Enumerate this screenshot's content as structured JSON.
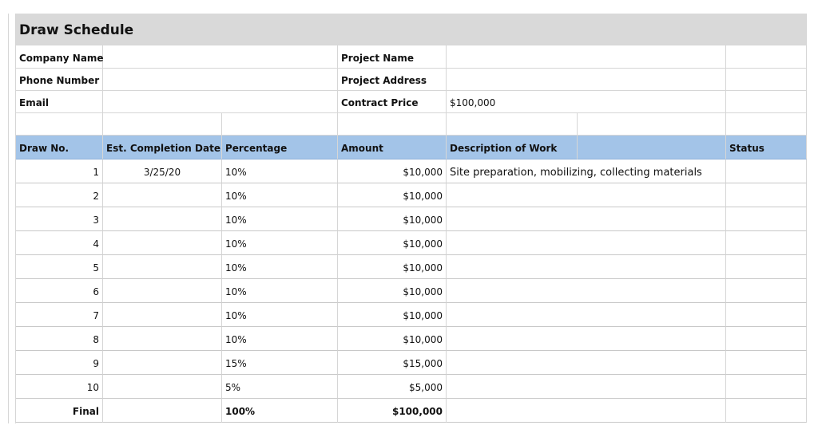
{
  "header": {
    "title": "Draw Schedule"
  },
  "info_left": [
    "Company Name",
    "Phone Number",
    "Email"
  ],
  "info_right": [
    {
      "label": "Project Name"
    },
    {
      "label": "Project Address"
    },
    {
      "label": "Contract Price",
      "value": "$100,000"
    }
  ],
  "table": {
    "columns": [
      "Draw No.",
      "Est. Completion Date",
      "Percentage",
      "Amount",
      "Description of Work",
      "Status"
    ],
    "rows": [
      {
        "draw_no": 1,
        "date": "3/25/20",
        "percentage": "10%",
        "amount": "$10,000",
        "description": "Site preparation, mobilizing, collecting materials"
      },
      {
        "draw_no": 2,
        "percentage": "10%",
        "amount": "$10,000"
      },
      {
        "draw_no": 3,
        "percentage": "10%",
        "amount": "$10,000"
      },
      {
        "draw_no": 4,
        "percentage": "10%",
        "amount": "$10,000"
      },
      {
        "draw_no": 5,
        "percentage": "10%",
        "amount": "$10,000"
      },
      {
        "draw_no": 6,
        "percentage": "10%",
        "amount": "$10,000"
      },
      {
        "draw_no": 7,
        "percentage": "10%",
        "amount": "$10,000"
      },
      {
        "draw_no": 8,
        "percentage": "10%",
        "amount": "$10,000"
      },
      {
        "draw_no": 9,
        "percentage": "15%",
        "amount": "$15,000"
      },
      {
        "draw_no": 10,
        "percentage": "5%",
        "amount": "$5,000"
      }
    ],
    "total": {
      "label": "Final",
      "percentage": "100%",
      "amount": "$100,000"
    }
  }
}
